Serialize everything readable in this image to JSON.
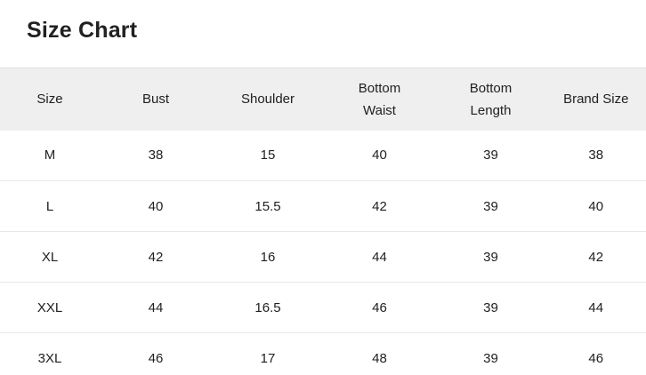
{
  "page": {
    "title": "Size Chart"
  },
  "table": {
    "columns": [
      "Size",
      "Bust",
      "Shoulder",
      "Bottom Waist",
      "Bottom Length",
      "Brand Size"
    ],
    "rows": [
      [
        "M",
        "38",
        "15",
        "40",
        "39",
        "38"
      ],
      [
        "L",
        "40",
        "15.5",
        "42",
        "39",
        "40"
      ],
      [
        "XL",
        "42",
        "16",
        "44",
        "39",
        "42"
      ],
      [
        "XXL",
        "44",
        "16.5",
        "46",
        "39",
        "44"
      ],
      [
        "3XL",
        "46",
        "17",
        "48",
        "39",
        "46"
      ]
    ]
  },
  "chart_data": {
    "type": "table",
    "title": "Size Chart",
    "columns": [
      "Size",
      "Bust",
      "Shoulder",
      "Bottom Waist",
      "Bottom Length",
      "Brand Size"
    ],
    "rows": [
      [
        "M",
        38,
        15,
        40,
        39,
        38
      ],
      [
        "L",
        40,
        15.5,
        42,
        39,
        40
      ],
      [
        "XL",
        42,
        16,
        44,
        39,
        42
      ],
      [
        "XXL",
        44,
        16.5,
        46,
        39,
        44
      ],
      [
        "3XL",
        46,
        17,
        48,
        39,
        46
      ]
    ]
  },
  "colors": {
    "header_background": "#efefef",
    "border_top": "#e0e0e0",
    "row_divider": "#e8e8e8",
    "text": "#212121",
    "page_background": "#ffffff"
  }
}
